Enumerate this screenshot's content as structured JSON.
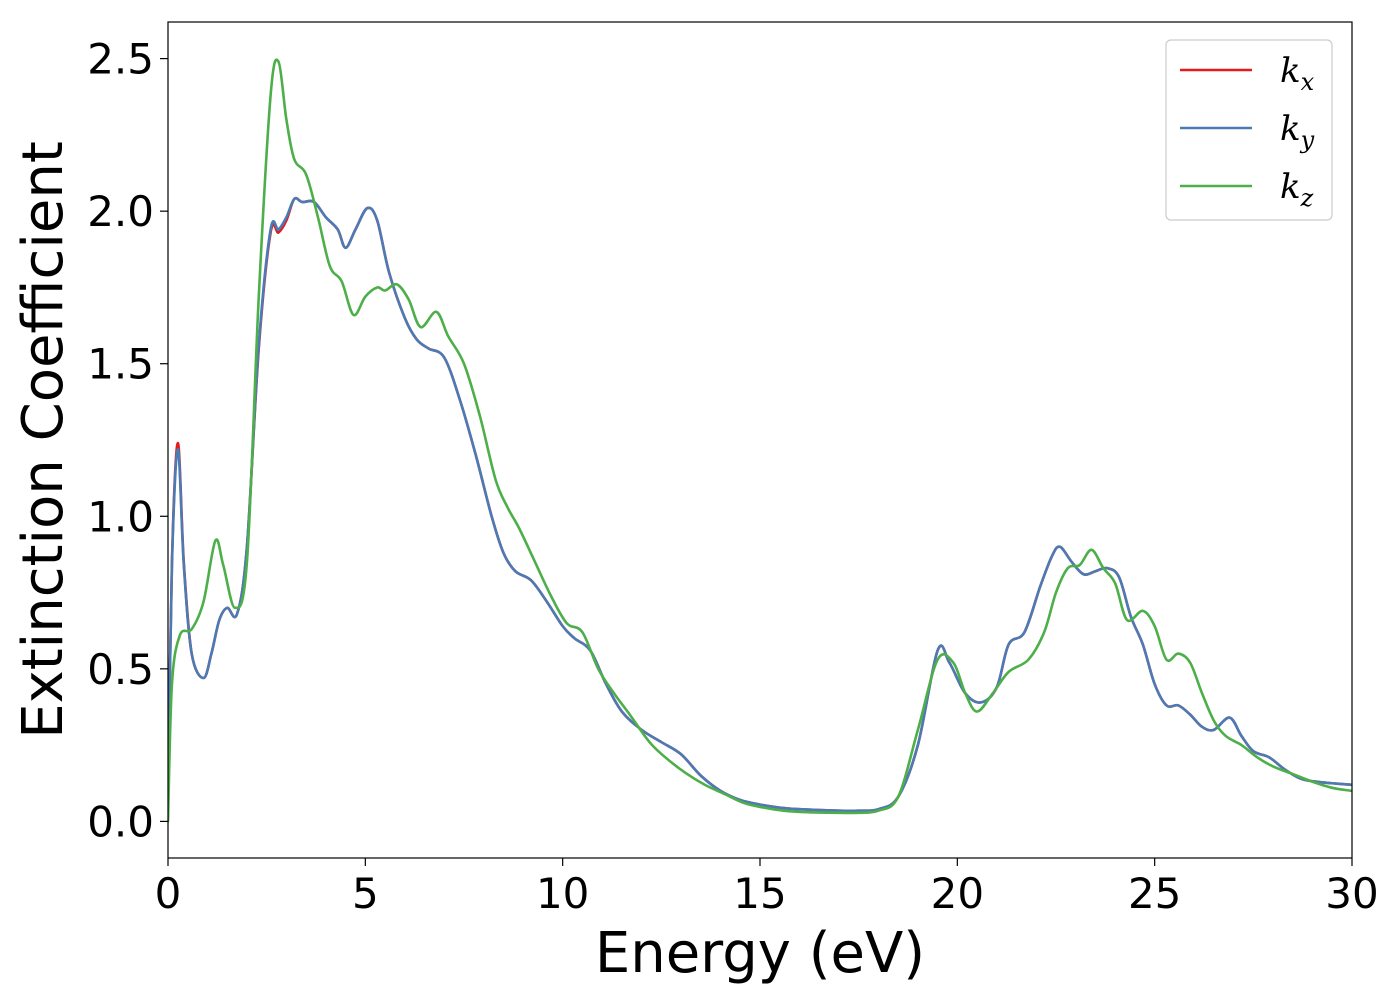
{
  "chart_data": {
    "type": "line",
    "xlabel": "Energy (eV)",
    "ylabel": "Extinction Coefficient",
    "xlim": [
      0,
      30
    ],
    "ylim": [
      -0.12,
      2.62
    ],
    "xticks": [
      0,
      5,
      10,
      15,
      20,
      25,
      30
    ],
    "yticks": [
      0.0,
      0.5,
      1.0,
      1.5,
      2.0,
      2.5
    ],
    "xtick_labels": [
      "0",
      "5",
      "10",
      "15",
      "20",
      "25",
      "30"
    ],
    "ytick_labels": [
      "0.0",
      "0.5",
      "1.0",
      "1.5",
      "2.0",
      "2.5"
    ],
    "grid": false,
    "legend_position": "top-right",
    "series": [
      {
        "name": "k_x",
        "label_main": "k",
        "label_sub": "x",
        "color": "#e41a1c",
        "x": [
          0,
          0.1,
          0.25,
          0.4,
          0.6,
          0.9,
          1.1,
          1.3,
          1.5,
          1.75,
          2.0,
          2.3,
          2.6,
          2.8,
          3.0,
          3.2,
          3.4,
          3.7,
          4.0,
          4.3,
          4.5,
          4.75,
          5.05,
          5.3,
          5.6,
          6.0,
          6.3,
          6.6,
          7.0,
          7.4,
          7.8,
          8.2,
          8.5,
          8.8,
          9.2,
          9.6,
          10.0,
          10.3,
          10.7,
          11.1,
          11.5,
          12.0,
          12.5,
          13.0,
          13.5,
          14.0,
          14.5,
          15.0,
          15.5,
          16.0,
          17.0,
          17.5,
          18.0,
          18.5,
          19.0,
          19.5,
          19.8,
          20.2,
          20.6,
          21.0,
          21.3,
          21.7,
          22.1,
          22.4,
          22.6,
          22.9,
          23.2,
          23.5,
          23.8,
          24.1,
          24.4,
          24.7,
          25.0,
          25.3,
          25.6,
          25.9,
          26.2,
          26.5,
          26.9,
          27.2,
          27.5,
          27.9,
          28.3,
          28.7,
          29.1,
          29.5,
          30.0
        ],
        "y": [
          0.05,
          0.85,
          1.24,
          0.85,
          0.55,
          0.47,
          0.55,
          0.66,
          0.7,
          0.68,
          0.9,
          1.55,
          1.93,
          1.93,
          1.97,
          2.04,
          2.03,
          2.03,
          1.98,
          1.94,
          1.88,
          1.94,
          2.01,
          1.97,
          1.8,
          1.65,
          1.58,
          1.55,
          1.52,
          1.38,
          1.2,
          1.0,
          0.88,
          0.82,
          0.79,
          0.72,
          0.64,
          0.6,
          0.56,
          0.45,
          0.36,
          0.3,
          0.26,
          0.22,
          0.15,
          0.1,
          0.07,
          0.055,
          0.045,
          0.04,
          0.035,
          0.035,
          0.04,
          0.08,
          0.25,
          0.56,
          0.52,
          0.42,
          0.39,
          0.44,
          0.58,
          0.62,
          0.77,
          0.87,
          0.9,
          0.85,
          0.81,
          0.82,
          0.83,
          0.8,
          0.67,
          0.58,
          0.45,
          0.38,
          0.38,
          0.35,
          0.31,
          0.3,
          0.34,
          0.28,
          0.23,
          0.21,
          0.17,
          0.14,
          0.13,
          0.125,
          0.12
        ]
      },
      {
        "name": "k_y",
        "label_main": "k",
        "label_sub": "y",
        "color": "#4a7bb5",
        "x": [
          0,
          0.1,
          0.25,
          0.4,
          0.6,
          0.9,
          1.1,
          1.3,
          1.5,
          1.75,
          2.0,
          2.3,
          2.6,
          2.8,
          3.0,
          3.2,
          3.4,
          3.7,
          4.0,
          4.3,
          4.5,
          4.75,
          5.05,
          5.3,
          5.6,
          6.0,
          6.3,
          6.6,
          7.0,
          7.4,
          7.8,
          8.2,
          8.5,
          8.8,
          9.2,
          9.6,
          10.0,
          10.3,
          10.7,
          11.1,
          11.5,
          12.0,
          12.5,
          13.0,
          13.5,
          14.0,
          14.5,
          15.0,
          15.5,
          16.0,
          17.0,
          17.5,
          18.0,
          18.5,
          19.0,
          19.5,
          19.8,
          20.2,
          20.6,
          21.0,
          21.3,
          21.7,
          22.1,
          22.4,
          22.6,
          22.9,
          23.2,
          23.5,
          23.8,
          24.1,
          24.4,
          24.7,
          25.0,
          25.3,
          25.6,
          25.9,
          26.2,
          26.5,
          26.9,
          27.2,
          27.5,
          27.9,
          28.3,
          28.7,
          29.1,
          29.5,
          30.0
        ],
        "y": [
          0.05,
          0.84,
          1.22,
          0.84,
          0.55,
          0.47,
          0.55,
          0.66,
          0.7,
          0.68,
          0.9,
          1.56,
          1.94,
          1.94,
          1.98,
          2.04,
          2.03,
          2.03,
          1.98,
          1.94,
          1.88,
          1.94,
          2.01,
          1.97,
          1.8,
          1.65,
          1.58,
          1.55,
          1.52,
          1.38,
          1.2,
          1.0,
          0.88,
          0.82,
          0.79,
          0.72,
          0.64,
          0.6,
          0.56,
          0.45,
          0.36,
          0.3,
          0.26,
          0.22,
          0.15,
          0.1,
          0.07,
          0.055,
          0.045,
          0.04,
          0.035,
          0.035,
          0.04,
          0.08,
          0.25,
          0.56,
          0.52,
          0.42,
          0.39,
          0.44,
          0.58,
          0.62,
          0.77,
          0.87,
          0.9,
          0.85,
          0.81,
          0.82,
          0.83,
          0.8,
          0.67,
          0.58,
          0.45,
          0.38,
          0.38,
          0.35,
          0.31,
          0.3,
          0.34,
          0.28,
          0.23,
          0.21,
          0.17,
          0.14,
          0.13,
          0.125,
          0.12
        ]
      },
      {
        "name": "k_z",
        "label_main": "k",
        "label_sub": "z",
        "color": "#4daf4a",
        "x": [
          0,
          0.1,
          0.3,
          0.6,
          0.9,
          1.2,
          1.4,
          1.7,
          2.0,
          2.3,
          2.6,
          2.8,
          3.0,
          3.2,
          3.5,
          3.8,
          4.1,
          4.4,
          4.7,
          5.0,
          5.3,
          5.5,
          5.8,
          6.1,
          6.4,
          6.8,
          7.1,
          7.5,
          7.9,
          8.3,
          8.6,
          8.9,
          9.3,
          9.7,
          10.1,
          10.5,
          10.9,
          11.3,
          11.7,
          12.2,
          12.6,
          13.1,
          13.6,
          14.1,
          14.6,
          15.1,
          15.6,
          16.2,
          17.0,
          17.5,
          18.0,
          18.5,
          19.0,
          19.5,
          19.9,
          20.2,
          20.5,
          20.9,
          21.3,
          21.8,
          22.2,
          22.5,
          22.8,
          23.1,
          23.4,
          23.7,
          24.0,
          24.3,
          24.7,
          25.0,
          25.3,
          25.6,
          25.9,
          26.2,
          26.5,
          26.8,
          27.2,
          27.6,
          28.0,
          28.5,
          29.0,
          29.5,
          30.0
        ],
        "y": [
          0.0,
          0.45,
          0.61,
          0.63,
          0.72,
          0.92,
          0.84,
          0.7,
          0.85,
          1.72,
          2.38,
          2.49,
          2.3,
          2.17,
          2.12,
          1.98,
          1.82,
          1.77,
          1.66,
          1.72,
          1.75,
          1.74,
          1.76,
          1.71,
          1.62,
          1.67,
          1.59,
          1.5,
          1.33,
          1.12,
          1.03,
          0.96,
          0.85,
          0.74,
          0.65,
          0.62,
          0.5,
          0.42,
          0.35,
          0.26,
          0.21,
          0.16,
          0.12,
          0.09,
          0.06,
          0.045,
          0.035,
          0.03,
          0.028,
          0.028,
          0.035,
          0.08,
          0.3,
          0.53,
          0.52,
          0.42,
          0.36,
          0.42,
          0.49,
          0.53,
          0.62,
          0.75,
          0.83,
          0.84,
          0.89,
          0.83,
          0.78,
          0.66,
          0.69,
          0.64,
          0.53,
          0.55,
          0.52,
          0.42,
          0.33,
          0.28,
          0.25,
          0.21,
          0.18,
          0.155,
          0.13,
          0.11,
          0.1
        ]
      }
    ]
  }
}
